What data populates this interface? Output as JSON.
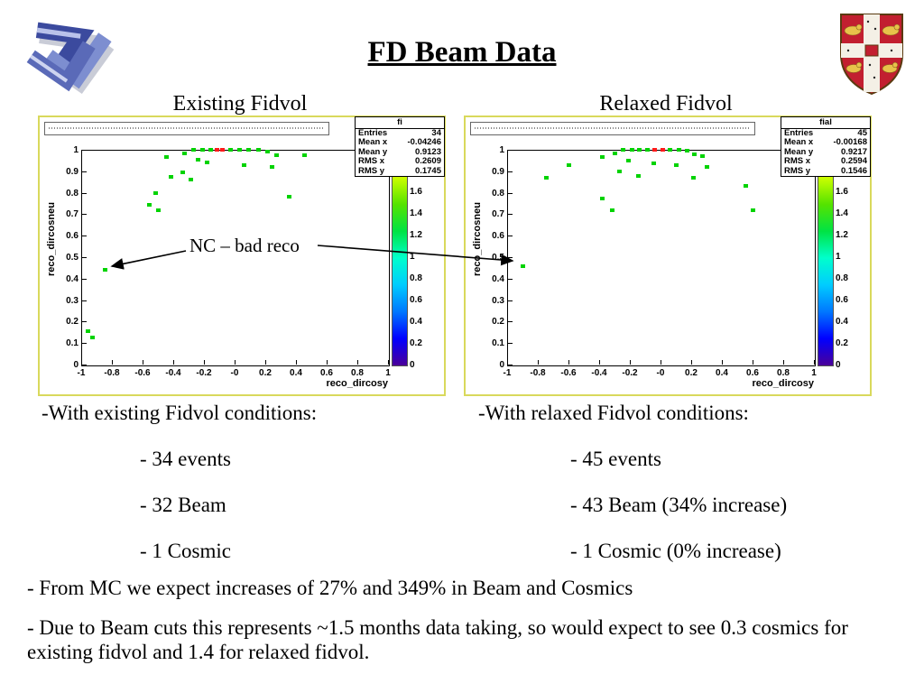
{
  "title": "FD Beam Data",
  "logos": {
    "top_left": "collaboration-knot-logo",
    "top_right": "cambridge-university-crest"
  },
  "annotation": {
    "label": "NC – bad reco"
  },
  "notes": {
    "left_header": "-With existing Fidvol conditions:",
    "right_header": "-With relaxed Fidvol conditions:",
    "left_items": [
      "- 34 events",
      "- 32 Beam",
      "- 1 Cosmic"
    ],
    "right_items": [
      "- 45 events",
      "- 43 Beam (34% increase)",
      "- 1 Cosmic (0% increase)"
    ],
    "bottom": [
      "- From MC we expect increases of 27% and 349% in Beam and Cosmics",
      "- Due to Beam cuts this represents  ~1.5 months data taking, so would expect to see 0.3 cosmics for existing fidvol and 1.4 for relaxed fidvol."
    ]
  },
  "chart_data": [
    {
      "type": "scatter",
      "header": "Existing Fidvol",
      "stats": {
        "name": "fi",
        "rows": [
          [
            "Entries",
            "34"
          ],
          [
            "Mean x",
            "-0.04246"
          ],
          [
            "Mean y",
            "0.9123"
          ],
          [
            "RMS x",
            "0.2609"
          ],
          [
            "RMS y",
            "0.1745"
          ]
        ]
      },
      "xlabel": "reco_dircosy",
      "ylabel": "reco_dircosneu",
      "xlim": [
        -1,
        1
      ],
      "ylim": [
        0,
        1
      ],
      "x_ticks": [
        "-1",
        "-0.8",
        "-0.6",
        "-0.4",
        "-0.2",
        "-0",
        "0.2",
        "0.4",
        "0.6",
        "0.8",
        "1"
      ],
      "y_ticks": [
        "0",
        "0.1",
        "0.2",
        "0.3",
        "0.4",
        "0.5",
        "0.6",
        "0.7",
        "0.8",
        "0.9",
        "1"
      ],
      "colorbar": {
        "ticks": [
          0,
          0.2,
          0.4,
          0.6,
          0.8,
          1,
          1.2,
          1.4,
          1.6
        ],
        "gradient": [
          "#4b0099",
          "#0000ff",
          "#0077ff",
          "#00ccff",
          "#00ffcc",
          "#00e344",
          "#55e300",
          "#ccff00",
          "#ffff00"
        ]
      },
      "point_colors": {
        "g": "#00d300",
        "r": "#ff1a1a"
      },
      "points": [
        [
          -0.45,
          0.965,
          "g"
        ],
        [
          -0.33,
          0.985,
          "g"
        ],
        [
          -0.27,
          1.0,
          "g"
        ],
        [
          -0.21,
          1.0,
          "g"
        ],
        [
          -0.16,
          1.0,
          "g"
        ],
        [
          -0.12,
          1.0,
          "r"
        ],
        [
          -0.08,
          1.0,
          "r"
        ],
        [
          -0.03,
          1.0,
          "g"
        ],
        [
          0.03,
          1.0,
          "g"
        ],
        [
          0.09,
          1.0,
          "g"
        ],
        [
          0.15,
          1.0,
          "g"
        ],
        [
          0.21,
          0.99,
          "g"
        ],
        [
          0.27,
          0.975,
          "g"
        ],
        [
          0.45,
          0.975,
          "g"
        ],
        [
          -0.24,
          0.955,
          "g"
        ],
        [
          -0.18,
          0.94,
          "g"
        ],
        [
          0.06,
          0.93,
          "g"
        ],
        [
          0.24,
          0.92,
          "g"
        ],
        [
          -0.34,
          0.895,
          "g"
        ],
        [
          -0.42,
          0.875,
          "g"
        ],
        [
          -0.29,
          0.86,
          "g"
        ],
        [
          0.35,
          0.78,
          "g"
        ],
        [
          -0.52,
          0.8,
          "g"
        ],
        [
          -0.56,
          0.745,
          "g"
        ],
        [
          -0.5,
          0.72,
          "g"
        ],
        [
          -0.85,
          0.44,
          "g"
        ],
        [
          -0.96,
          0.155,
          "g"
        ],
        [
          -0.93,
          0.125,
          "g"
        ]
      ]
    },
    {
      "type": "scatter",
      "header": "Relaxed Fidvol",
      "stats": {
        "name": "fial",
        "rows": [
          [
            "Entries",
            "45"
          ],
          [
            "Mean x",
            "-0.00168"
          ],
          [
            "Mean y",
            "0.9217"
          ],
          [
            "RMS x",
            "0.2594"
          ],
          [
            "RMS y",
            "0.1546"
          ]
        ]
      },
      "xlabel": "reco_dircosy",
      "ylabel": "reco_dircosneu",
      "xlim": [
        -1,
        1
      ],
      "ylim": [
        0,
        1
      ],
      "x_ticks": [
        "-1",
        "-0.8",
        "-0.6",
        "-0.4",
        "-0.2",
        "-0",
        "0.2",
        "0.4",
        "0.6",
        "0.8",
        "1"
      ],
      "y_ticks": [
        "0",
        "0.1",
        "0.2",
        "0.3",
        "0.4",
        "0.5",
        "0.6",
        "0.7",
        "0.8",
        "0.9",
        "1"
      ],
      "colorbar": {
        "ticks": [
          0,
          0.2,
          0.4,
          0.6,
          0.8,
          1,
          1.2,
          1.4,
          1.6
        ],
        "gradient": [
          "#4b0099",
          "#0000ff",
          "#0077ff",
          "#00ccff",
          "#00ffcc",
          "#00e344",
          "#55e300",
          "#ccff00",
          "#ffff00"
        ]
      },
      "point_colors": {
        "g": "#00d300",
        "r": "#ff1a1a"
      },
      "points": [
        [
          -0.75,
          0.87,
          "g"
        ],
        [
          -0.6,
          0.93,
          "g"
        ],
        [
          -0.38,
          0.965,
          "g"
        ],
        [
          -0.3,
          0.985,
          "g"
        ],
        [
          -0.25,
          1.0,
          "g"
        ],
        [
          -0.19,
          1.0,
          "g"
        ],
        [
          -0.14,
          1.0,
          "g"
        ],
        [
          -0.09,
          1.0,
          "g"
        ],
        [
          -0.04,
          1.0,
          "r"
        ],
        [
          0.01,
          1.0,
          "r"
        ],
        [
          0.06,
          1.0,
          "g"
        ],
        [
          0.12,
          1.0,
          "g"
        ],
        [
          0.17,
          0.995,
          "g"
        ],
        [
          0.22,
          0.98,
          "g"
        ],
        [
          0.27,
          0.97,
          "g"
        ],
        [
          -0.21,
          0.95,
          "g"
        ],
        [
          -0.05,
          0.935,
          "g"
        ],
        [
          0.1,
          0.93,
          "g"
        ],
        [
          0.3,
          0.92,
          "g"
        ],
        [
          -0.27,
          0.9,
          "g"
        ],
        [
          -0.15,
          0.88,
          "g"
        ],
        [
          0.21,
          0.87,
          "g"
        ],
        [
          0.55,
          0.83,
          "g"
        ],
        [
          -0.38,
          0.775,
          "g"
        ],
        [
          -0.32,
          0.72,
          "g"
        ],
        [
          0.6,
          0.72,
          "g"
        ],
        [
          -0.9,
          0.46,
          "g"
        ]
      ]
    }
  ]
}
